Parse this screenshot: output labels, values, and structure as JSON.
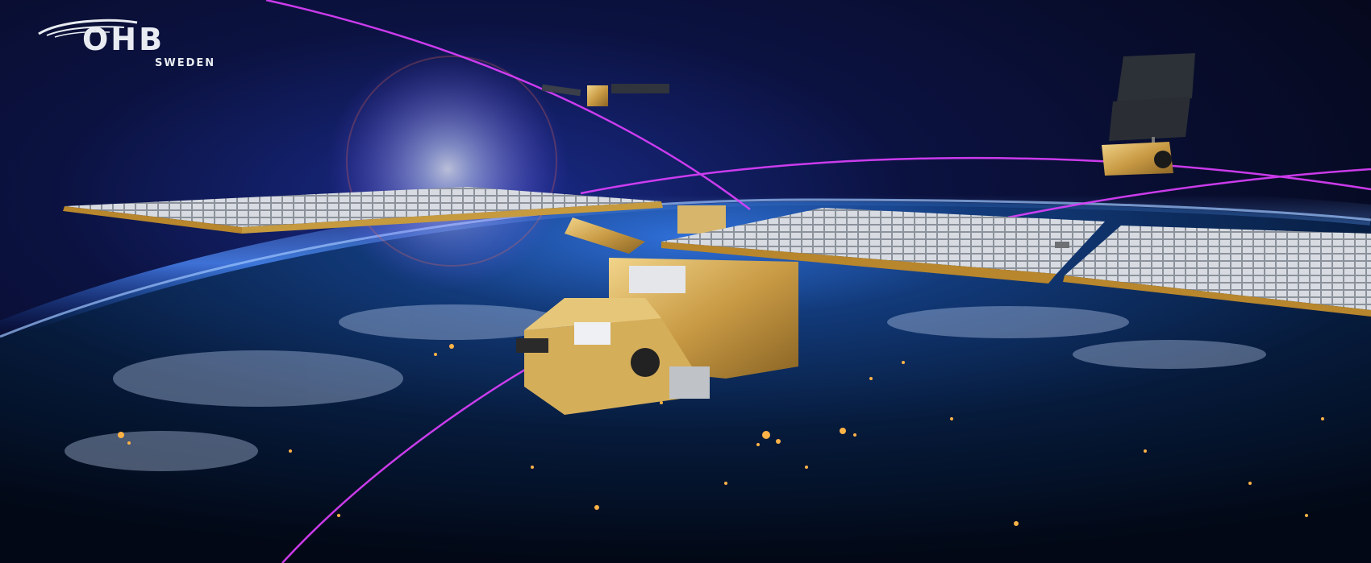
{
  "logo": {
    "name": "OHB",
    "subtitle": "SWEDEN"
  },
  "scene": {
    "colors": {
      "space": "#05070f",
      "atmosphere": "#2a6cff",
      "orbit_line": "#e040ff",
      "gold_foil": "#d9b25a",
      "solar_panel": "#c9cdd3",
      "city_lights": "#ffb347"
    }
  }
}
